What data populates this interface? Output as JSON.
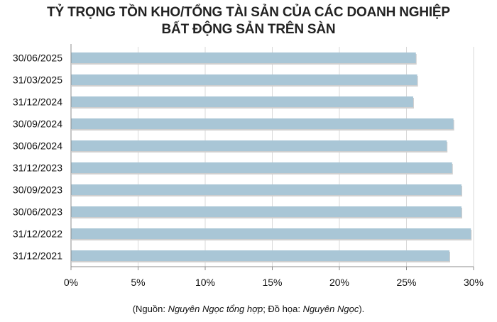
{
  "title_lines": [
    "TỶ TRỌNG TỒN KHO/TỔNG TÀI SẢN CỦA CÁC DOANH NGHIỆP",
    "BẤT ĐỘNG SẢN TRÊN SÀN"
  ],
  "source": {
    "prefix": "(Nguồn: ",
    "source_name": "Nguyên Ngọc tổng hợp",
    "middle": "; Đồ họa: ",
    "designer": "Nguyên Ngọc",
    "suffix": ")."
  },
  "colors": {
    "bar": "#a9c6d6",
    "bar_shadow": "#cfcfcf",
    "axis": "#8c8c8c",
    "grid": "#d9d9d9"
  },
  "chart_data": {
    "type": "bar",
    "orientation": "horizontal",
    "categories": [
      "30/06/2025",
      "31/03/2025",
      "31/12/2024",
      "30/09/2024",
      "30/06/2024",
      "31/12/2023",
      "30/09/2023",
      "30/06/2023",
      "31/12/2022",
      "31/12/2021"
    ],
    "values": [
      25.7,
      25.8,
      25.5,
      28.5,
      28.0,
      28.4,
      29.1,
      29.1,
      29.8,
      28.2
    ],
    "xlim": [
      0,
      30
    ],
    "xticks": [
      "0%",
      "5%",
      "10%",
      "15%",
      "20%",
      "25%",
      "30%"
    ],
    "xtick_values": [
      0,
      5,
      10,
      15,
      20,
      25,
      30
    ],
    "grid": true
  }
}
